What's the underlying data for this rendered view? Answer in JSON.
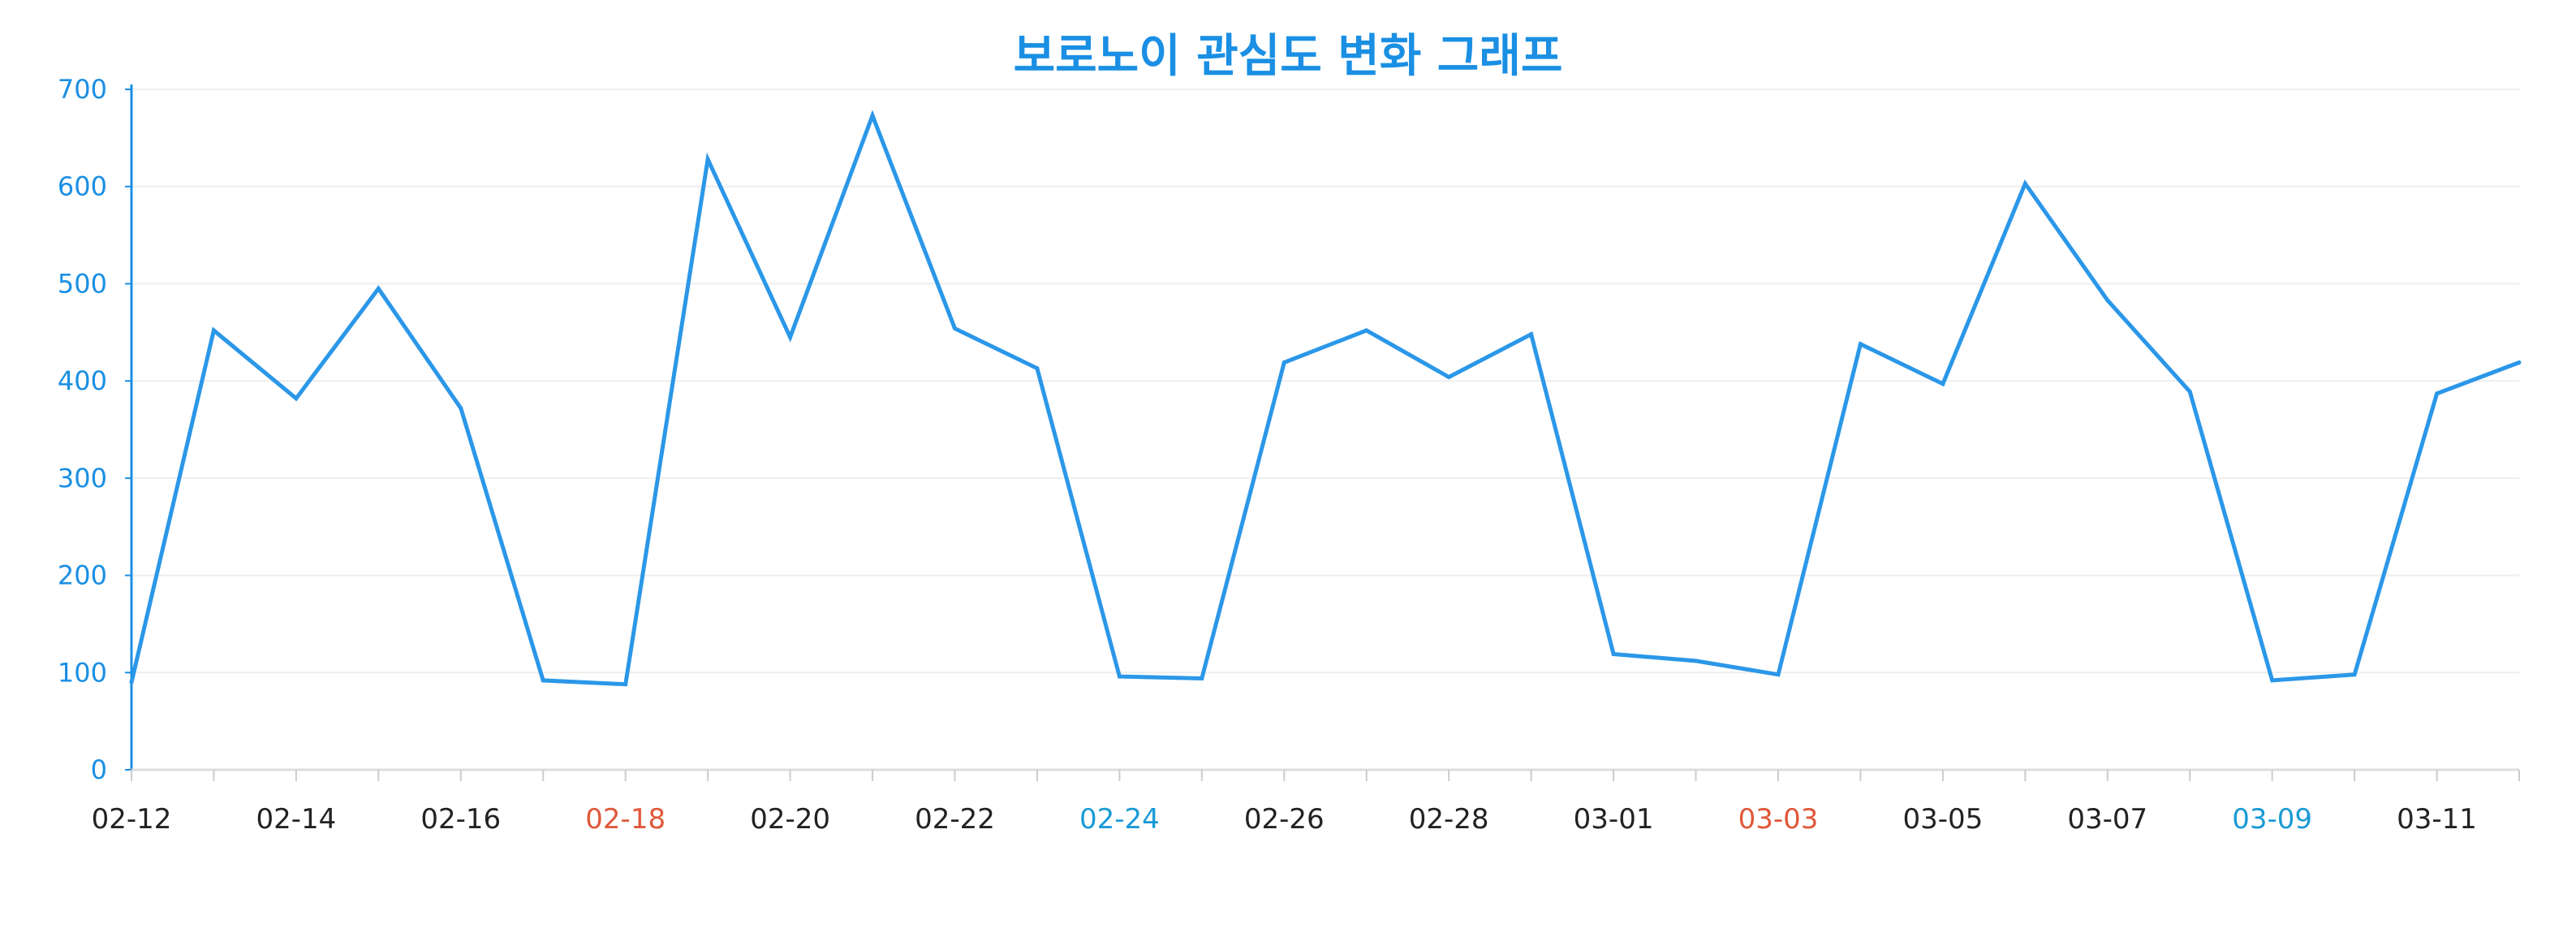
{
  "chart_data": {
    "type": "line",
    "title": "보로노이 관심도 변화 그래프",
    "xlabel": "",
    "ylabel": "",
    "ylim": [
      0,
      700
    ],
    "y_ticks": [
      0,
      100,
      200,
      300,
      400,
      500,
      600,
      700
    ],
    "grid": true,
    "x": [
      "02-12",
      "02-13",
      "02-14",
      "02-15",
      "02-16",
      "02-17",
      "02-18",
      "02-19",
      "02-20",
      "02-21",
      "02-22",
      "02-23",
      "02-24",
      "02-25",
      "02-26",
      "02-27",
      "02-28",
      "02-29",
      "03-01",
      "03-02",
      "03-03",
      "03-04",
      "03-05",
      "03-06",
      "03-07",
      "03-08",
      "03-09",
      "03-10",
      "03-11",
      "03-12"
    ],
    "x_tick_labels": [
      {
        "label": "02-12",
        "color": "#222222"
      },
      {
        "label": "02-14",
        "color": "#222222"
      },
      {
        "label": "02-16",
        "color": "#222222"
      },
      {
        "label": "02-18",
        "color": "#e0583a"
      },
      {
        "label": "02-20",
        "color": "#222222"
      },
      {
        "label": "02-22",
        "color": "#222222"
      },
      {
        "label": "02-24",
        "color": "#1a9ad6"
      },
      {
        "label": "02-26",
        "color": "#222222"
      },
      {
        "label": "02-28",
        "color": "#222222"
      },
      {
        "label": "03-01",
        "color": "#222222"
      },
      {
        "label": "03-03",
        "color": "#e0583a"
      },
      {
        "label": "03-05",
        "color": "#222222"
      },
      {
        "label": "03-07",
        "color": "#222222"
      },
      {
        "label": "03-09",
        "color": "#1a9ad6"
      },
      {
        "label": "03-11",
        "color": "#222222"
      }
    ],
    "series": [
      {
        "values": [
          90,
          452,
          382,
          495,
          372,
          92,
          88,
          628,
          445,
          673,
          454,
          413,
          96,
          94,
          419,
          452,
          404,
          448,
          119,
          112,
          98,
          438,
          397,
          603,
          483,
          389,
          92,
          98,
          387,
          419
        ]
      }
    ],
    "colors": {
      "line": "#2b97e8",
      "axis": "#1a8fe3",
      "grid": "#eeeeee",
      "title": "#1a8fe3"
    }
  }
}
